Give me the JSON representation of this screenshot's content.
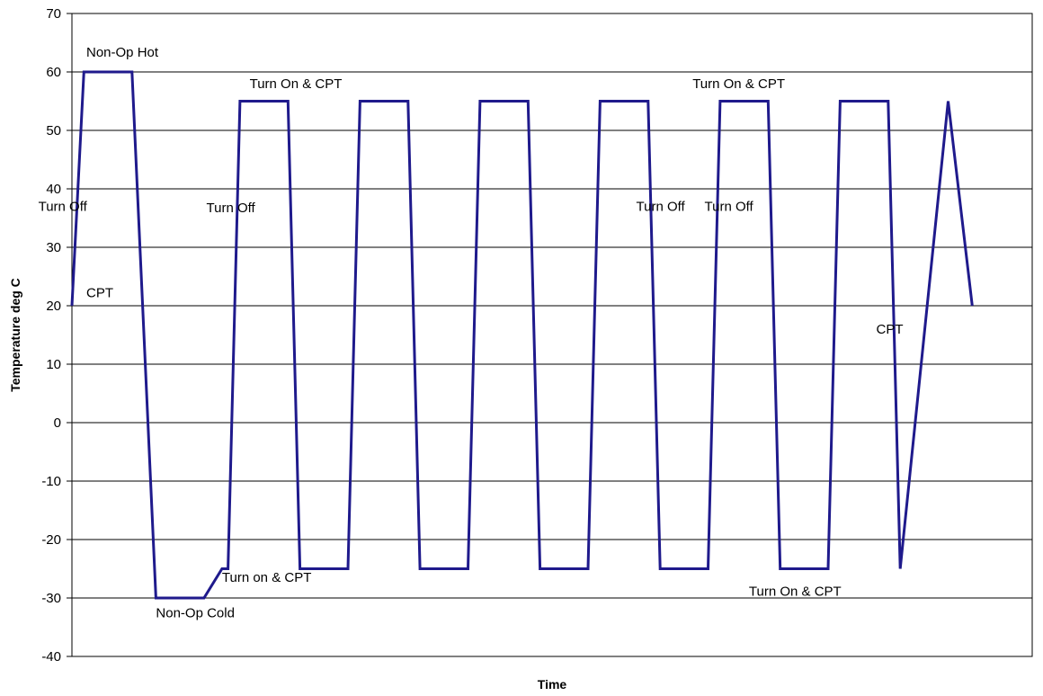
{
  "chart_data": {
    "type": "line",
    "title": "",
    "xlabel": "Time",
    "ylabel": "Temperature deg C",
    "ylim": [
      -40,
      70
    ],
    "yticks": [
      "70",
      "60",
      "50",
      "40",
      "30",
      "20",
      "10",
      "0",
      "-10",
      "-20",
      "-30",
      "-40"
    ],
    "grid": true,
    "legend": "none",
    "line_color": "#1f1a8c",
    "x_tick_labels": [],
    "series": [
      {
        "x": [
          0,
          1,
          5,
          7,
          11,
          12.5,
          13,
          14,
          18,
          19,
          23,
          24,
          28,
          29,
          33,
          34,
          38,
          39,
          43,
          44,
          48,
          49,
          53,
          54,
          58,
          59,
          63,
          64,
          68,
          69,
          73,
          75
        ],
        "values": [
          20,
          60,
          60,
          -30,
          -30,
          -25,
          -25,
          55,
          55,
          -25,
          -25,
          55,
          55,
          -25,
          -25,
          55,
          55,
          -25,
          -25,
          55,
          55,
          -25,
          -25,
          55,
          55,
          -25,
          -25,
          55,
          55,
          -25,
          55,
          20
        ]
      }
    ],
    "annotations": [
      {
        "text": "Non-Op Hot",
        "x": 1.2,
        "y": 62.6
      },
      {
        "text": "Turn On & CPT",
        "x": 14.8,
        "y": 57.2
      },
      {
        "text": "Turn On & CPT",
        "x": 51.7,
        "y": 57.2
      },
      {
        "text": "Turn Off",
        "x": -2.8,
        "y": 36.2
      },
      {
        "text": "Turn Off",
        "x": 11.2,
        "y": 36.0
      },
      {
        "text": "Turn Off",
        "x": 47.0,
        "y": 36.2
      },
      {
        "text": "Turn Off",
        "x": 52.7,
        "y": 36.2
      },
      {
        "text": "CPT",
        "x": 1.2,
        "y": 21.5
      },
      {
        "text": "CPT",
        "x": 67.0,
        "y": 15.2
      },
      {
        "text": "Turn on & CPT",
        "x": 12.5,
        "y": -27.2
      },
      {
        "text": "Non-Op Cold",
        "x": 7.0,
        "y": -33.3
      },
      {
        "text": "Turn On & CPT",
        "x": 56.4,
        "y": -29.6
      }
    ]
  }
}
